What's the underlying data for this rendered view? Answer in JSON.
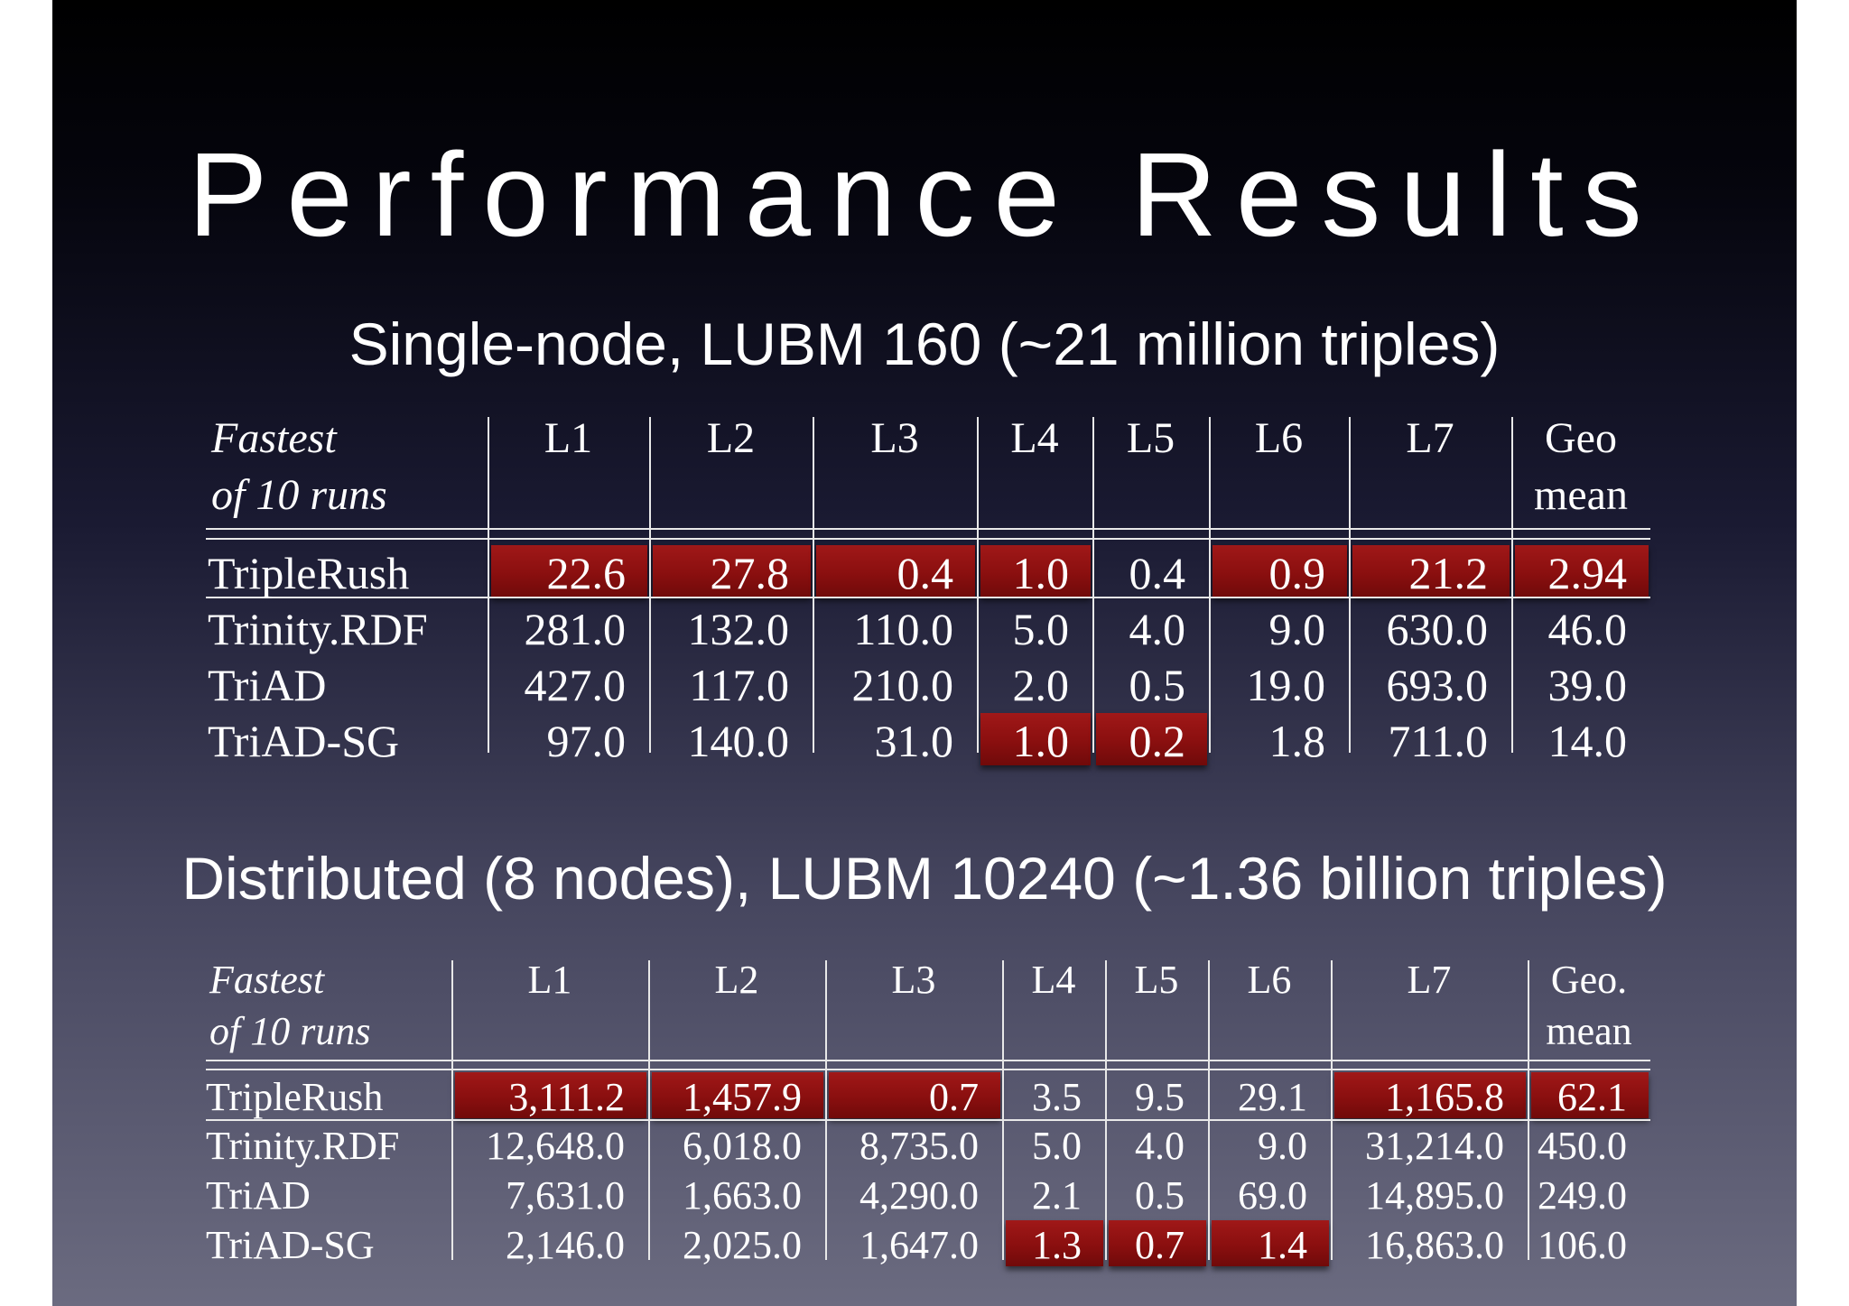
{
  "title": "Performance Results",
  "tables": [
    {
      "subtitle": "Single-node, LUBM 160 (~21 million triples)",
      "header_label_line1": "Fastest",
      "header_label_line2": "of 10 runs",
      "columns": [
        {
          "line1": "L1",
          "line2": ""
        },
        {
          "line1": "L2",
          "line2": ""
        },
        {
          "line1": "L3",
          "line2": ""
        },
        {
          "line1": "L4",
          "line2": ""
        },
        {
          "line1": "L5",
          "line2": ""
        },
        {
          "line1": "L6",
          "line2": ""
        },
        {
          "line1": "L7",
          "line2": ""
        },
        {
          "line1": "Geo",
          "line2": "mean"
        }
      ],
      "rows": [
        {
          "name": "TripleRush",
          "values": [
            "22.6",
            "27.8",
            "0.4",
            "1.0",
            "0.4",
            "0.9",
            "21.2",
            "2.94"
          ],
          "highlight": [
            true,
            true,
            true,
            true,
            false,
            true,
            true,
            true
          ]
        },
        {
          "name": "Trinity.RDF",
          "values": [
            "281.0",
            "132.0",
            "110.0",
            "5.0",
            "4.0",
            "9.0",
            "630.0",
            "46.0"
          ],
          "highlight": [
            false,
            false,
            false,
            false,
            false,
            false,
            false,
            false
          ]
        },
        {
          "name": "TriAD",
          "values": [
            "427.0",
            "117.0",
            "210.0",
            "2.0",
            "0.5",
            "19.0",
            "693.0",
            "39.0"
          ],
          "highlight": [
            false,
            false,
            false,
            false,
            false,
            false,
            false,
            false
          ]
        },
        {
          "name": "TriAD-SG",
          "values": [
            "97.0",
            "140.0",
            "31.0",
            "1.0",
            "0.2",
            "1.8",
            "711.0",
            "14.0"
          ],
          "highlight": [
            false,
            false,
            false,
            true,
            true,
            false,
            false,
            false
          ]
        }
      ]
    },
    {
      "subtitle": "Distributed (8 nodes), LUBM 10240 (~1.36 billion triples)",
      "header_label_line1": "Fastest",
      "header_label_line2": "of 10 runs",
      "columns": [
        {
          "line1": "L1",
          "line2": ""
        },
        {
          "line1": "L2",
          "line2": ""
        },
        {
          "line1": "L3",
          "line2": ""
        },
        {
          "line1": "L4",
          "line2": ""
        },
        {
          "line1": "L5",
          "line2": ""
        },
        {
          "line1": "L6",
          "line2": ""
        },
        {
          "line1": "L7",
          "line2": ""
        },
        {
          "line1": "Geo.",
          "line2": "mean"
        }
      ],
      "rows": [
        {
          "name": "TripleRush",
          "values": [
            "3,111.2",
            "1,457.9",
            "0.7",
            "3.5",
            "9.5",
            "29.1",
            "1,165.8",
            "62.1"
          ],
          "highlight": [
            true,
            true,
            true,
            false,
            false,
            false,
            true,
            true
          ]
        },
        {
          "name": "Trinity.RDF",
          "values": [
            "12,648.0",
            "6,018.0",
            "8,735.0",
            "5.0",
            "4.0",
            "9.0",
            "31,214.0",
            "450.0"
          ],
          "highlight": [
            false,
            false,
            false,
            false,
            false,
            false,
            false,
            false
          ]
        },
        {
          "name": "TriAD",
          "values": [
            "7,631.0",
            "1,663.0",
            "4,290.0",
            "2.1",
            "0.5",
            "69.0",
            "14,895.0",
            "249.0"
          ],
          "highlight": [
            false,
            false,
            false,
            false,
            false,
            false,
            false,
            false
          ]
        },
        {
          "name": "TriAD-SG",
          "values": [
            "2,146.0",
            "2,025.0",
            "1,647.0",
            "1.3",
            "0.7",
            "1.4",
            "16,863.0",
            "106.0"
          ],
          "highlight": [
            false,
            false,
            false,
            true,
            true,
            true,
            false,
            false
          ]
        }
      ]
    }
  ]
}
